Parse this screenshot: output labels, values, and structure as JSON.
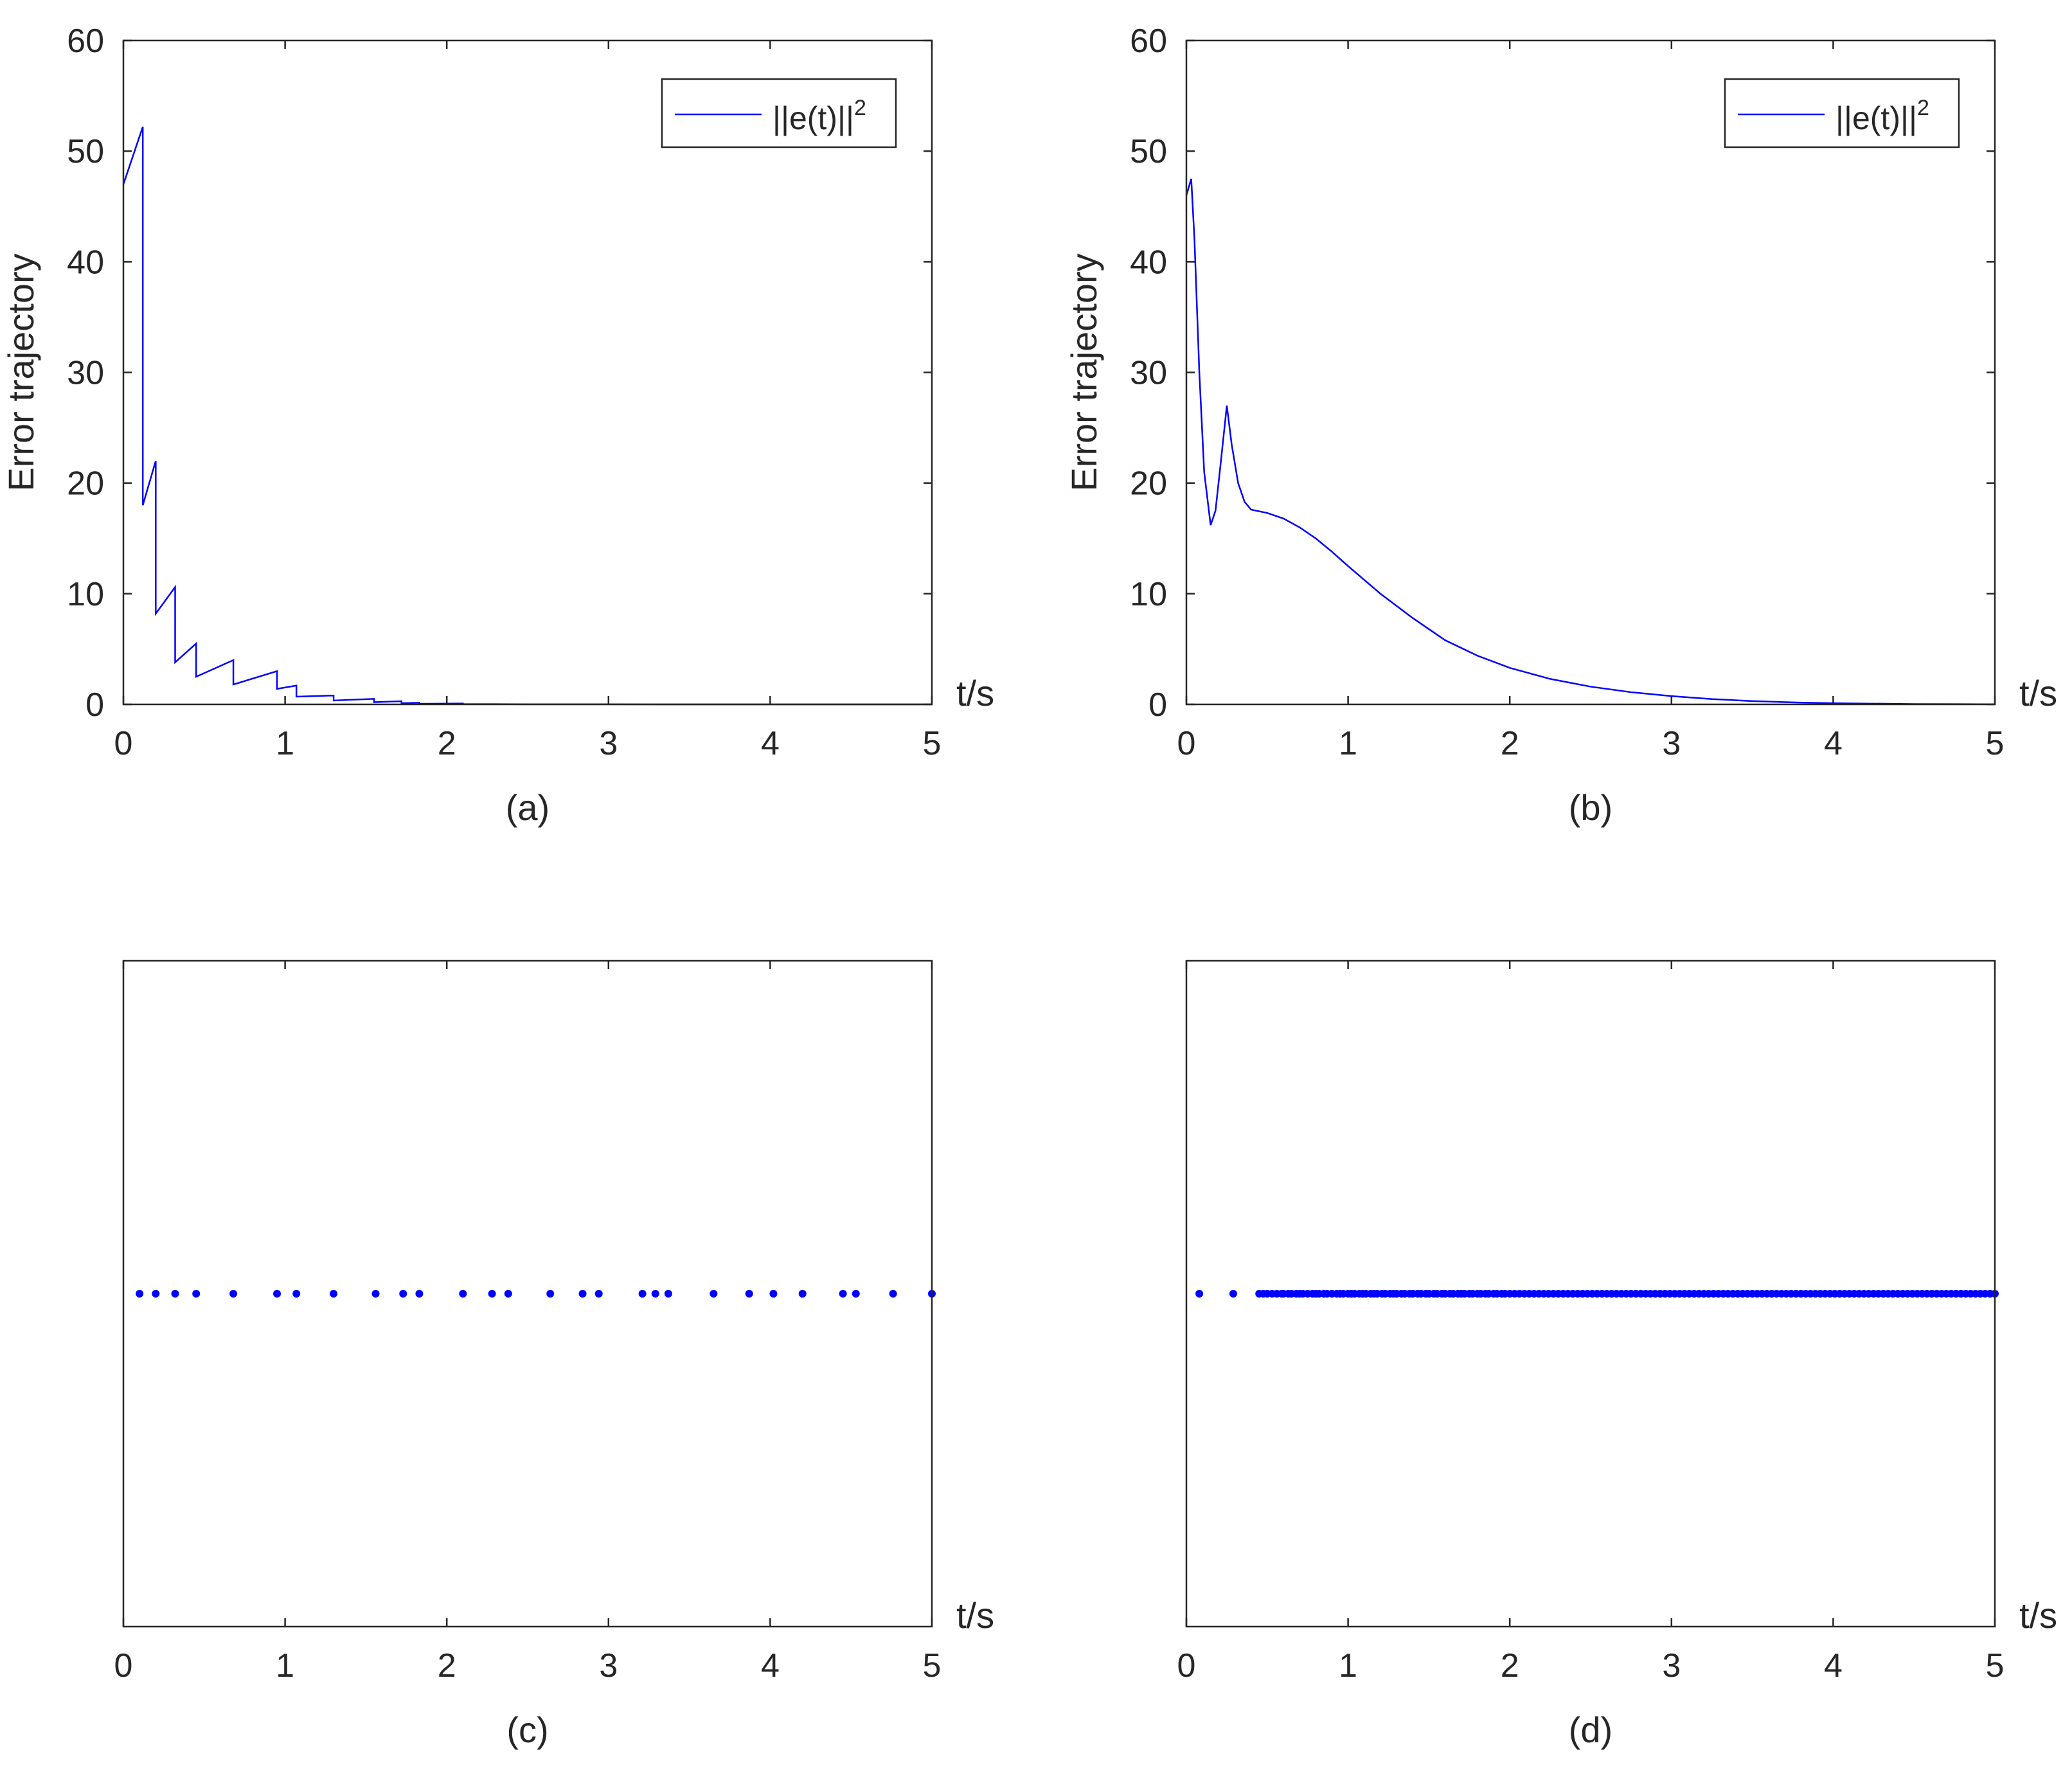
{
  "chart_data": [
    {
      "panel": "a",
      "type": "line",
      "caption": "(a)",
      "ylabel": "Error trajectory",
      "xlabel": "t/s",
      "xlim": [
        0,
        5
      ],
      "ylim": [
        0,
        60
      ],
      "xticks": [
        0,
        1,
        2,
        3,
        4,
        5
      ],
      "yticks": [
        0,
        10,
        20,
        30,
        40,
        50,
        60
      ],
      "legend": {
        "base": "||e(t)||",
        "sup": "2",
        "placement": "top-right"
      },
      "color": "#0000ff",
      "series": [
        {
          "x": [
            0,
            0.12,
            0.12,
            0.2,
            0.2,
            0.32,
            0.32,
            0.45,
            0.45,
            0.68,
            0.68,
            0.95,
            0.95,
            1.07,
            1.07,
            1.3,
            1.3,
            1.55,
            1.55,
            1.72,
            1.72,
            1.83,
            1.83,
            2.1,
            2.1,
            2.3,
            2.5,
            3,
            3.5,
            4,
            4.5,
            5
          ],
          "y": [
            47,
            52.2,
            18,
            22,
            8.2,
            10.6,
            3.8,
            5.5,
            2.5,
            4,
            1.8,
            3,
            1.4,
            1.7,
            0.7,
            0.8,
            0.35,
            0.5,
            0.2,
            0.28,
            0.1,
            0.15,
            0.05,
            0.08,
            0.03,
            0.02,
            0.01,
            0.005,
            0.002,
            0.001,
            0.0005,
            0
          ]
        }
      ]
    },
    {
      "panel": "b",
      "type": "line",
      "caption": "(b)",
      "ylabel": "Error trajectory",
      "xlabel": "t/s",
      "xlim": [
        0,
        5
      ],
      "ylim": [
        0,
        60
      ],
      "xticks": [
        0,
        1,
        2,
        3,
        4,
        5
      ],
      "yticks": [
        0,
        10,
        20,
        30,
        40,
        50,
        60
      ],
      "legend": {
        "base": "||e(t)||",
        "sup": "2",
        "placement": "top-right"
      },
      "color": "#0000ff",
      "series": [
        {
          "x": [
            0,
            0.03,
            0.05,
            0.08,
            0.11,
            0.15,
            0.18,
            0.21,
            0.25,
            0.28,
            0.32,
            0.36,
            0.4,
            0.5,
            0.6,
            0.7,
            0.8,
            0.9,
            1,
            1.2,
            1.4,
            1.6,
            1.8,
            2,
            2.25,
            2.5,
            2.75,
            3,
            3.25,
            3.5,
            3.75,
            4,
            4.5,
            5
          ],
          "y": [
            46,
            47.5,
            42,
            30,
            21,
            16.2,
            17.5,
            21.5,
            27,
            23.5,
            20,
            18.3,
            17.6,
            17.3,
            16.8,
            16,
            15,
            13.8,
            12.5,
            10,
            7.8,
            5.8,
            4.4,
            3.3,
            2.3,
            1.6,
            1.1,
            0.75,
            0.48,
            0.3,
            0.18,
            0.1,
            0.03,
            0.01
          ]
        }
      ]
    },
    {
      "panel": "c",
      "type": "scatter",
      "caption": "(c)",
      "xlabel": "t/s",
      "xlim": [
        0,
        5
      ],
      "xticks": [
        0,
        1,
        2,
        3,
        4,
        5
      ],
      "marker_level": 0.5,
      "color": "#0000ff",
      "x": [
        0.1,
        0.2,
        0.32,
        0.45,
        0.68,
        0.95,
        1.07,
        1.3,
        1.56,
        1.73,
        1.83,
        2.1,
        2.28,
        2.38,
        2.64,
        2.84,
        2.94,
        3.21,
        3.29,
        3.37,
        3.65,
        3.87,
        4.02,
        4.2,
        4.45,
        4.53,
        4.76,
        5.0
      ]
    },
    {
      "panel": "d",
      "type": "scatter",
      "caption": "(d)",
      "xlabel": "t/s",
      "xlim": [
        0,
        5
      ],
      "xticks": [
        0,
        1,
        2,
        3,
        4,
        5
      ],
      "marker_level": 0.5,
      "color": "#0000ff",
      "x": [
        0.08,
        0.29,
        0.45,
        0.475,
        0.5,
        0.53,
        0.56,
        0.59,
        0.6,
        0.63,
        0.65,
        0.68,
        0.7,
        0.72,
        0.75,
        0.78,
        0.8,
        0.82,
        0.85,
        0.87,
        0.9,
        0.93,
        0.95,
        0.97,
        1.0,
        1.02,
        1.04,
        1.07,
        1.09,
        1.11,
        1.14,
        1.16,
        1.18,
        1.21,
        1.23,
        1.26,
        1.28,
        1.3,
        1.33,
        1.35,
        1.38,
        1.4,
        1.43,
        1.45,
        1.48,
        1.5,
        1.53,
        1.55,
        1.58,
        1.6,
        1.63,
        1.65,
        1.68,
        1.7,
        1.72,
        1.75,
        1.77,
        1.8,
        1.82,
        1.85,
        1.87,
        1.9,
        1.92,
        1.95,
        1.97,
        2.0,
        2.03,
        2.06,
        2.09,
        2.12,
        2.15,
        2.18,
        2.21,
        2.24,
        2.27,
        2.3,
        2.33,
        2.36,
        2.39,
        2.42,
        2.45,
        2.48,
        2.51,
        2.54,
        2.57,
        2.6,
        2.63,
        2.66,
        2.69,
        2.72,
        2.75,
        2.78,
        2.81,
        2.84,
        2.87,
        2.9,
        2.93,
        2.96,
        2.99,
        3.02,
        3.05,
        3.08,
        3.11,
        3.14,
        3.17,
        3.2,
        3.23,
        3.26,
        3.29,
        3.32,
        3.35,
        3.38,
        3.41,
        3.44,
        3.47,
        3.5,
        3.53,
        3.56,
        3.59,
        3.62,
        3.65,
        3.68,
        3.71,
        3.74,
        3.77,
        3.8,
        3.83,
        3.86,
        3.89,
        3.92,
        3.95,
        3.98,
        4.01,
        4.04,
        4.07,
        4.1,
        4.13,
        4.16,
        4.19,
        4.22,
        4.25,
        4.28,
        4.31,
        4.34,
        4.37,
        4.4,
        4.43,
        4.46,
        4.49,
        4.52,
        4.55,
        4.58,
        4.61,
        4.64,
        4.67,
        4.7,
        4.73,
        4.76,
        4.79,
        4.82,
        4.85,
        4.88,
        4.91,
        4.94,
        4.97,
        5.0
      ]
    }
  ]
}
